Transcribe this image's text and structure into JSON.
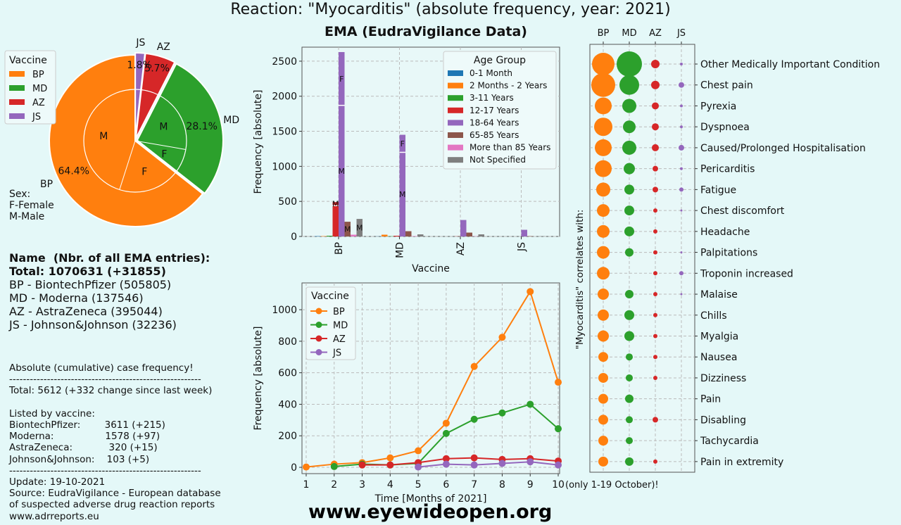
{
  "title": "Reaction: \"Myocarditis\" (absolute frequency, year: 2021)",
  "subtitle": "EMA (EudraVigilance Data)",
  "footer_url": "www.eyewideopen.org",
  "colors": {
    "BP": "#ff7f0e",
    "MD": "#2ca02c",
    "AZ": "#d62728",
    "JS": "#9467bd",
    "blue": "#1f77b4",
    "brown": "#8c564b",
    "pink": "#e377c2",
    "gray": "#7f7f7f"
  },
  "info": {
    "header": "Name  (Nbr. of all EMA entries):",
    "total": "Total: 1070631 (+31855)",
    "lines": [
      "BP - BiontechPfizer (505805)",
      "MD - Moderna (137546)",
      "AZ - AstraZeneca (395044)",
      "JS - Johnson&Johnson (32236)"
    ],
    "notes": [
      "Absolute (cumulative) case frequency!",
      "--------------------------------------------------------",
      "Total: 5612 (+332 change since last week)",
      "",
      "Listed by vaccine:",
      "BiontechPfizer:        3611 (+215)",
      "Moderna:                 1578 (+97)",
      "AstraZeneca:            320 (+15)",
      "Johnson&Johnson:    103 (+5)",
      "--------------------------------------------------------",
      "Update: 19-10-2021",
      "Source: EudraVigilance - European database",
      "of suspected adverse drug reaction reports",
      "www.adrreports.eu"
    ]
  },
  "chart_data": [
    {
      "type": "pie",
      "legend_title": "Vaccine",
      "legend_position": "top-left",
      "outer": [
        {
          "label": "BP",
          "pct": 64.4,
          "pct_label": "64.4%"
        },
        {
          "label": "MD",
          "pct": 28.1,
          "pct_label": "28.1%"
        },
        {
          "label": "AZ",
          "pct": 5.7,
          "pct_label": "5.7%"
        },
        {
          "label": "JS",
          "pct": 1.8,
          "pct_label": "1.8%"
        }
      ],
      "inner_sex_labels": [
        {
          "vaccine": "BP",
          "label": "F",
          "fraction_of_vaccine": 0.3
        },
        {
          "vaccine": "BP",
          "label": "M",
          "fraction_of_vaccine": 0.7
        },
        {
          "vaccine": "MD",
          "label": "M",
          "fraction_of_vaccine": 0.72
        },
        {
          "vaccine": "MD",
          "label": "F",
          "fraction_of_vaccine": 0.28
        }
      ],
      "sex_note": [
        "Sex:",
        "F-Female",
        "M-Male"
      ]
    },
    {
      "type": "bar",
      "ylabel": "Frequency [absolute]",
      "xlabel": "Vaccine",
      "categories": [
        "BP",
        "MD",
        "AZ",
        "JS"
      ],
      "yticks": [
        0,
        500,
        1000,
        1500,
        2000,
        2500
      ],
      "ylim": [
        0,
        2700
      ],
      "grid": true,
      "legend_title": "Age Group",
      "legend_position": "top-right",
      "series": [
        {
          "name": "0-1 Month",
          "color": "#1f77b4",
          "values": [
            5,
            2,
            0,
            0
          ]
        },
        {
          "name": "2 Months - 2 Years",
          "color": "#ff7f0e",
          "values": [
            5,
            25,
            0,
            0
          ]
        },
        {
          "name": "3-11 Years",
          "color": "#2ca02c",
          "values": [
            10,
            3,
            0,
            0
          ]
        },
        {
          "name": "12-17 Years",
          "color": "#d62728",
          "values": [
            490,
            10,
            2,
            0
          ]
        },
        {
          "name": "18-64 Years",
          "color": "#9467bd",
          "values": [
            2630,
            1450,
            235,
            95
          ]
        },
        {
          "name": "65-85 Years",
          "color": "#8c564b",
          "values": [
            210,
            75,
            55,
            5
          ]
        },
        {
          "name": "More than 85 Years",
          "color": "#e377c2",
          "values": [
            25,
            5,
            3,
            0
          ]
        },
        {
          "name": "Not Specified",
          "color": "#7f7f7f",
          "values": [
            250,
            30,
            30,
            3
          ]
        }
      ],
      "sex_split_markers": [
        {
          "category": "BP",
          "series": "18-64 Years",
          "female_at": 1870,
          "labels": [
            "F",
            "M"
          ]
        },
        {
          "category": "BP",
          "series": "12-17 Years",
          "female_at": 440,
          "labels": [
            "M"
          ]
        },
        {
          "category": "BP",
          "series": "65-85 Years",
          "labels": [
            "M"
          ]
        },
        {
          "category": "BP",
          "series": "Not Specified",
          "labels": [
            "M"
          ]
        },
        {
          "category": "MD",
          "series": "18-64 Years",
          "female_at": 1200,
          "labels": [
            "F",
            "M"
          ]
        }
      ]
    },
    {
      "type": "line",
      "xlabel": "Time [Months of 2021]",
      "ylabel": "Frequency [absolute]",
      "x": [
        1,
        2,
        3,
        4,
        5,
        6,
        7,
        8,
        9,
        10
      ],
      "xtick_note": "(only 1-19 October)!",
      "yticks": [
        0,
        200,
        400,
        600,
        800,
        1000
      ],
      "ylim": [
        -40,
        1170
      ],
      "grid": true,
      "legend_title": "Vaccine",
      "legend_position": "top-left",
      "series": [
        {
          "name": "BP",
          "color": "#ff7f0e",
          "values": [
            2,
            20,
            30,
            60,
            105,
            280,
            640,
            825,
            1115,
            540
          ]
        },
        {
          "name": "MD",
          "color": "#2ca02c",
          "values": [
            null,
            5,
            20,
            15,
            25,
            215,
            305,
            345,
            400,
            245
          ]
        },
        {
          "name": "AZ",
          "color": "#d62728",
          "values": [
            null,
            null,
            15,
            15,
            30,
            55,
            60,
            50,
            55,
            40
          ]
        },
        {
          "name": "JS",
          "color": "#9467bd",
          "values": [
            null,
            null,
            null,
            null,
            2,
            20,
            15,
            25,
            35,
            15
          ]
        }
      ]
    },
    {
      "type": "scatter",
      "ylabel": "\"Myocarditis\" correlates with:",
      "columns": [
        "BP",
        "MD",
        "AZ",
        "JS"
      ],
      "rows": [
        {
          "label": "Other Medically Important Condition",
          "sizes": [
            16,
            18,
            6,
            2
          ]
        },
        {
          "label": "Chest pain",
          "sizes": [
            17,
            14,
            6,
            4
          ]
        },
        {
          "label": "Pyrexia",
          "sizes": [
            12,
            10,
            5,
            2
          ]
        },
        {
          "label": "Dyspnoea",
          "sizes": [
            13,
            9,
            5,
            2
          ]
        },
        {
          "label": "Caused/Prolonged Hospitalisation",
          "sizes": [
            12,
            10,
            5,
            4
          ]
        },
        {
          "label": "Pericarditis",
          "sizes": [
            12,
            8,
            4,
            2
          ]
        },
        {
          "label": "Fatigue",
          "sizes": [
            10,
            7,
            4,
            3
          ]
        },
        {
          "label": "Chest discomfort",
          "sizes": [
            9,
            7,
            3,
            1.5
          ]
        },
        {
          "label": "Headache",
          "sizes": [
            9,
            7,
            3,
            0
          ]
        },
        {
          "label": "Palpitations",
          "sizes": [
            9,
            6,
            3,
            1.5
          ]
        },
        {
          "label": "Troponin increased",
          "sizes": [
            9,
            0,
            3,
            3
          ]
        },
        {
          "label": "Malaise",
          "sizes": [
            8,
            6,
            3,
            1.5
          ]
        },
        {
          "label": "Chills",
          "sizes": [
            8,
            7,
            3,
            0
          ]
        },
        {
          "label": "Myalgia",
          "sizes": [
            8,
            7,
            3,
            0
          ]
        },
        {
          "label": "Nausea",
          "sizes": [
            7,
            5,
            3,
            0
          ]
        },
        {
          "label": "Dizziness",
          "sizes": [
            7,
            5,
            3,
            0
          ]
        },
        {
          "label": "Pain",
          "sizes": [
            7,
            6,
            0,
            0
          ]
        },
        {
          "label": "Disabling",
          "sizes": [
            7,
            5,
            4,
            0
          ]
        },
        {
          "label": "Tachycardia",
          "sizes": [
            7,
            5,
            0,
            0
          ]
        },
        {
          "label": "Pain in extremity",
          "sizes": [
            7,
            6,
            3,
            0
          ]
        }
      ]
    }
  ]
}
